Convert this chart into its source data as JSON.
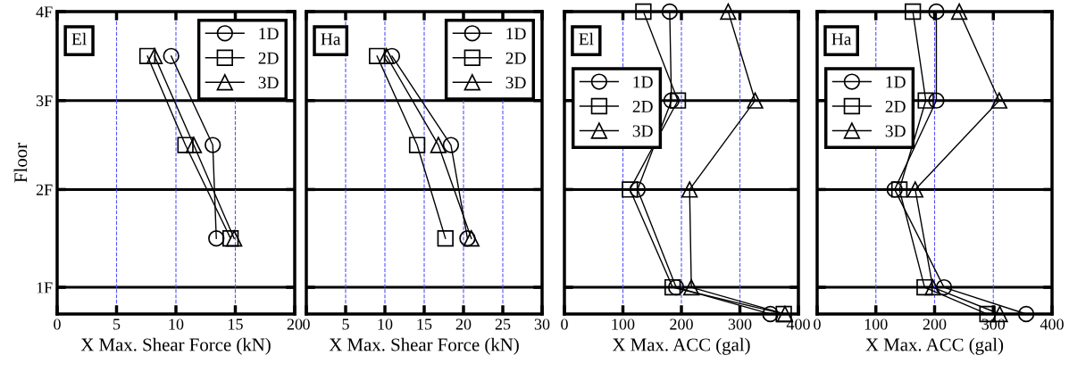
{
  "chart_data": [
    {
      "type": "line",
      "annotations": [
        "El"
      ],
      "xlabel": "X Max. Shear Force (kN)",
      "ylabel": "Floor",
      "xlim": [
        0,
        20
      ],
      "xticks": [
        0,
        5,
        10,
        15,
        20
      ],
      "ylim": [
        0.6,
        4
      ],
      "yticks": [
        {
          "value": 0.9,
          "label": "1F"
        },
        {
          "value": 2,
          "label": "2F"
        },
        {
          "value": 3,
          "label": "3F"
        },
        {
          "value": 4,
          "label": "4F"
        }
      ],
      "grid": "x",
      "legend": "top right",
      "ref_lines": [
        {
          "axis": "y",
          "value": 0.9,
          "color": "#000000"
        },
        {
          "axis": "y",
          "value": 2,
          "color": "#000000"
        },
        {
          "axis": "y",
          "value": 3,
          "color": "#000000"
        }
      ],
      "series": [
        {
          "name": "1D",
          "color": "#000000",
          "marker": "circle",
          "x": [
            9.6,
            13.1,
            13.4
          ],
          "values": [
            3.5,
            2.5,
            1.45
          ]
        },
        {
          "name": "2D",
          "color": "#000000",
          "marker": "square",
          "x": [
            7.6,
            10.8,
            14.6
          ],
          "values": [
            3.5,
            2.5,
            1.45
          ]
        },
        {
          "name": "3D",
          "color": "#000000",
          "marker": "triangle",
          "x": [
            8.2,
            11.5,
            14.9
          ],
          "values": [
            3.5,
            2.5,
            1.45
          ]
        }
      ]
    },
    {
      "type": "line",
      "annotations": [
        "Ha"
      ],
      "xlabel": "X Max. Shear Force (kN)",
      "xlim": [
        0,
        30
      ],
      "xticks": [
        0,
        5,
        10,
        15,
        20,
        25,
        30
      ],
      "ylim": [
        0.6,
        4
      ],
      "yticks": [
        {
          "value": 0.9,
          "label": null
        },
        {
          "value": 2,
          "label": null
        },
        {
          "value": 3,
          "label": null
        },
        {
          "value": 4,
          "label": null
        }
      ],
      "tick_labels": "x",
      "grid": "x",
      "legend": "top right",
      "ref_lines": [
        {
          "axis": "y",
          "value": 0.9,
          "color": "#000000"
        },
        {
          "axis": "y",
          "value": 2,
          "color": "#000000"
        },
        {
          "axis": "y",
          "value": 3,
          "color": "#000000"
        }
      ],
      "series": [
        {
          "name": "1D",
          "color": "#000000",
          "marker": "circle",
          "x": [
            10.9,
            18.4,
            20.5
          ],
          "values": [
            3.5,
            2.5,
            1.45
          ]
        },
        {
          "name": "2D",
          "color": "#000000",
          "marker": "square",
          "x": [
            9.0,
            14.1,
            17.7
          ],
          "values": [
            3.5,
            2.5,
            1.45
          ]
        },
        {
          "name": "3D",
          "color": "#000000",
          "marker": "triangle",
          "x": [
            10.2,
            16.8,
            21.0
          ],
          "values": [
            3.5,
            2.5,
            1.45
          ]
        }
      ]
    },
    {
      "type": "line",
      "annotations": [
        "El"
      ],
      "xlabel": "X Max. ACC (gal)",
      "xlim": [
        0,
        400
      ],
      "xticks": [
        0,
        100,
        200,
        300,
        400
      ],
      "ylim": [
        0.6,
        4
      ],
      "yticks": [
        {
          "value": 0.9,
          "label": null
        },
        {
          "value": 2,
          "label": null
        },
        {
          "value": 3,
          "label": null
        },
        {
          "value": 4,
          "label": null
        }
      ],
      "tick_labels": "x",
      "grid": "x",
      "legend": "top left",
      "ref_lines": [
        {
          "axis": "y",
          "value": 0.9,
          "color": "#000000"
        },
        {
          "axis": "y",
          "value": 2,
          "color": "#000000"
        },
        {
          "axis": "y",
          "value": 3,
          "color": "#000000"
        }
      ],
      "series": [
        {
          "name": "1D",
          "color": "#000000",
          "marker": "circle",
          "x": [
            180,
            183,
            125,
            191,
            352
          ],
          "values": [
            4,
            3,
            2,
            0.9,
            0.6
          ]
        },
        {
          "name": "2D",
          "color": "#000000",
          "marker": "square",
          "x": [
            135,
            194,
            112,
            185,
            375
          ],
          "values": [
            4,
            3,
            2,
            0.9,
            0.6
          ]
        },
        {
          "name": "3D",
          "color": "#000000",
          "marker": "triangle",
          "x": [
            280,
            326,
            214,
            217,
            377
          ],
          "values": [
            4,
            3,
            2,
            0.9,
            0.6
          ]
        }
      ]
    },
    {
      "type": "line",
      "annotations": [
        "Ha"
      ],
      "xlabel": "X Max. ACC (gal)",
      "xlim": [
        0,
        400
      ],
      "xticks": [
        0,
        100,
        200,
        300,
        400
      ],
      "ylim": [
        0.6,
        4
      ],
      "yticks": [
        {
          "value": 0.9,
          "label": null
        },
        {
          "value": 2,
          "label": null
        },
        {
          "value": 3,
          "label": null
        },
        {
          "value": 4,
          "label": null
        }
      ],
      "tick_labels": "x",
      "grid": "x",
      "legend": "top left",
      "ref_lines": [
        {
          "axis": "y",
          "value": 0.9,
          "color": "#000000"
        },
        {
          "axis": "y",
          "value": 2,
          "color": "#000000"
        },
        {
          "axis": "y",
          "value": 3,
          "color": "#000000"
        }
      ],
      "series": [
        {
          "name": "1D",
          "color": "#000000",
          "marker": "circle",
          "x": [
            203,
            203,
            132,
            216,
            356
          ],
          "values": [
            4,
            3,
            2,
            0.9,
            0.6
          ]
        },
        {
          "name": "2D",
          "color": "#000000",
          "marker": "square",
          "x": [
            163,
            185,
            140,
            183,
            290
          ],
          "values": [
            4,
            3,
            2,
            0.9,
            0.6
          ]
        },
        {
          "name": "3D",
          "color": "#000000",
          "marker": "triangle",
          "x": [
            242,
            310,
            167,
            197,
            311
          ],
          "values": [
            4,
            3,
            2,
            0.9,
            0.6
          ]
        }
      ]
    }
  ]
}
